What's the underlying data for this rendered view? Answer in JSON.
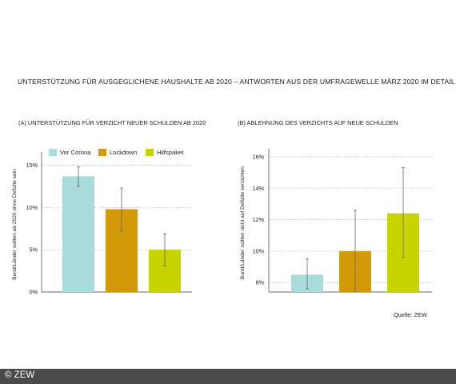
{
  "page": {
    "title": "UNTERSTÜTZUNG FÜR AUSGEGLICHENE HAUSHALTE AB 2020 – ANTWORTEN AUS DER UMFRAGEWELLE MÄRZ 2020 IM DETAIL",
    "source": "Quelle: ZEW",
    "footer": "© ZEW"
  },
  "colors": {
    "vor_corona": "#a8dbd9",
    "lockdown": "#d39a07",
    "hilfspaket": "#c8d400",
    "grid": "#b5b5b5",
    "axis": "#666666",
    "errorbar": "#666666"
  },
  "chart_data": [
    {
      "type": "bar",
      "panel_label": "(A)",
      "title": "UNTERSTÜTZUNG FÜR VERZICHT NEUER SCHULDEN AB 2020",
      "ylabel": "Bund/Länder sollten ab 2020 ohne Defizite sein",
      "xlabel": "",
      "legend_position": "top",
      "ylim": [
        0,
        16
      ],
      "yticks": [
        0,
        5,
        10,
        15
      ],
      "ytick_labels": [
        "0%",
        "5%",
        "10%",
        "15%"
      ],
      "grid": true,
      "categories": [
        "Vor Corona",
        "Lockdown",
        "Hilfspaket"
      ],
      "values": [
        13.7,
        9.8,
        5.0
      ],
      "error_low": [
        12.5,
        7.2,
        3.1
      ],
      "error_high": [
        14.8,
        12.3,
        6.9
      ]
    },
    {
      "type": "bar",
      "panel_label": "(B)",
      "title": "ABLEHNUNG DES VERZICHTS AUF NEUE SCHULDEN",
      "ylabel": "Bund/Länder sollten nicht auf Defizite verzichten",
      "xlabel": "",
      "ylim": [
        7.4,
        16.2
      ],
      "yticks": [
        8,
        10,
        12,
        14,
        16
      ],
      "ytick_labels": [
        "8%",
        "10%",
        "12%",
        "14%",
        "16%"
      ],
      "grid": true,
      "categories": [
        "Vor Corona",
        "Lockdown",
        "Hilfspaket"
      ],
      "values": [
        8.5,
        10.0,
        12.4
      ],
      "error_low": [
        7.6,
        7.4,
        9.6
      ],
      "error_high": [
        9.5,
        12.6,
        15.3
      ]
    }
  ]
}
